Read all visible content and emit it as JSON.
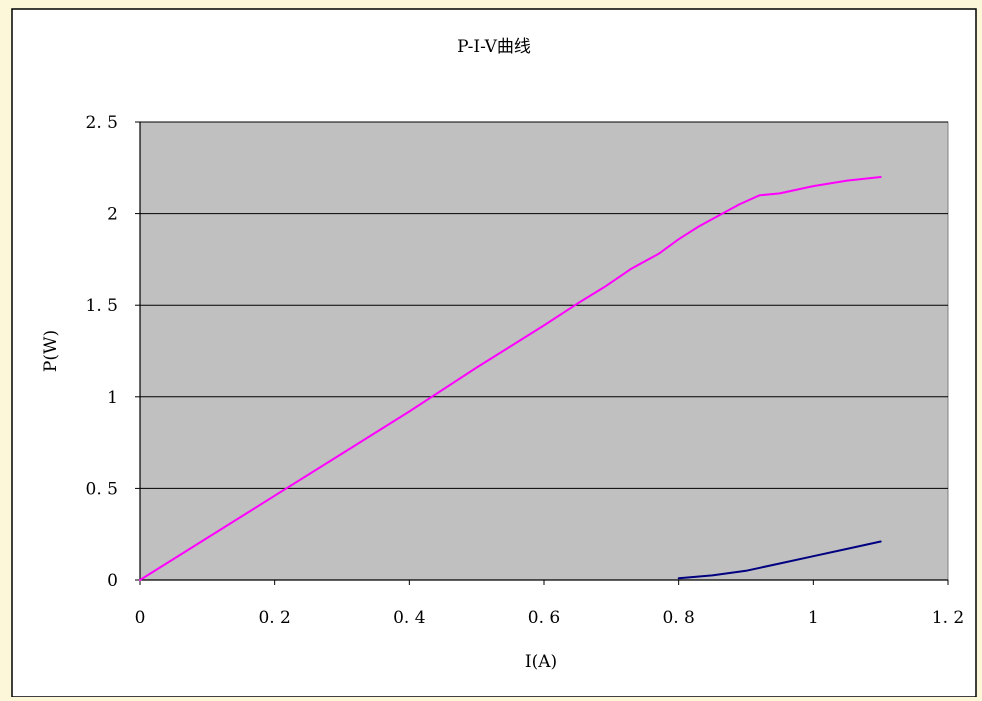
{
  "chart_data": {
    "type": "line",
    "title": "P-I-V曲线",
    "xlabel": "I(A)",
    "ylabel": "P(W)",
    "xlim": [
      0,
      1.2
    ],
    "ylim": [
      0,
      2.5
    ],
    "x_ticks": [
      0,
      0.2,
      0.4,
      0.6,
      0.8,
      1,
      1.2
    ],
    "y_ticks": [
      0,
      0.5,
      1,
      1.5,
      2,
      2.5
    ],
    "x_tick_labels": [
      "0",
      "0. 2",
      "0. 4",
      "0. 6",
      "0. 8",
      "1",
      "1. 2"
    ],
    "y_tick_labels": [
      "0",
      "0. 5",
      "1",
      "1. 5",
      "2",
      "2. 5"
    ],
    "grid": "horizontal",
    "legend": "none",
    "series": [
      {
        "color": "#ff00ff",
        "x": [
          0,
          0.1,
          0.2,
          0.3,
          0.4,
          0.5,
          0.6,
          0.65,
          0.69,
          0.73,
          0.77,
          0.8,
          0.83,
          0.86,
          0.89,
          0.92,
          0.95,
          1.0,
          1.05,
          1.1
        ],
        "y": [
          0,
          0.23,
          0.46,
          0.69,
          0.92,
          1.16,
          1.39,
          1.51,
          1.6,
          1.7,
          1.78,
          1.86,
          1.93,
          1.99,
          2.05,
          2.1,
          2.11,
          2.15,
          2.18,
          2.2
        ]
      },
      {
        "color": "#000080",
        "x": [
          0.8,
          0.85,
          0.9,
          0.95,
          1.0,
          1.05,
          1.1
        ],
        "y": [
          0.01,
          0.025,
          0.05,
          0.09,
          0.13,
          0.17,
          0.21
        ]
      }
    ]
  },
  "colors": {
    "page_background": "#fdf7d9",
    "chart_area": "#ffffff",
    "plot_area": "#c0c0c0",
    "frame": "#000000",
    "gridline": "#000000"
  }
}
